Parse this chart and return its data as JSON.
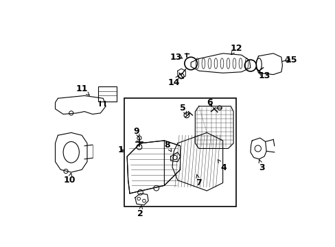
{
  "bg_color": "#ffffff",
  "line_color": "#000000",
  "text_color": "#000000",
  "label_fontsize": 9,
  "figsize": [
    4.89,
    3.6
  ],
  "dpi": 100
}
